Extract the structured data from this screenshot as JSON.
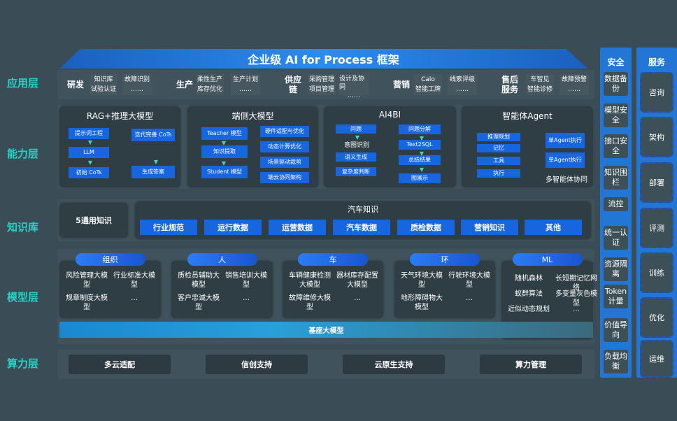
{
  "title": "企业级 AI for Process 框架",
  "layers": [
    "应用层",
    "能力层",
    "知识库",
    "模型层",
    "算力层"
  ],
  "app": [
    {
      "name": "研发",
      "items": [
        [
          "知识库",
          "试验认证"
        ],
        [
          "故障识别",
          "……"
        ]
      ]
    },
    {
      "name": "生产",
      "items": [
        [
          "柔性生产",
          "库存优化"
        ],
        [
          "生产计划",
          "……"
        ]
      ]
    },
    {
      "name": "供应链",
      "items": [
        [
          "采购管理",
          "项目管理"
        ],
        [
          "设计及协同",
          "……"
        ]
      ]
    },
    {
      "name": "营销",
      "items": [
        [
          "Calo",
          "智能工牌"
        ],
        [
          "线索评级",
          "……"
        ]
      ]
    },
    {
      "name": "售后服务",
      "items": [
        [
          "车智见",
          "智能诊修"
        ],
        [
          "故障预警",
          "……"
        ]
      ]
    }
  ],
  "capability": {
    "rag": {
      "title": "RAG+推理大模型",
      "left": [
        "提示词工程",
        "LLM",
        "初始 CoTs"
      ],
      "right": [
        "迭代完善 CoTs",
        "生成答案"
      ]
    },
    "edge": {
      "title": "端侧大模型",
      "left": [
        "Teacher 模型",
        "知识提取",
        "Student 模型"
      ],
      "right": [
        "硬件适配与优化",
        "动态计算优化",
        "场景驱动裁剪",
        "端云协同架构"
      ]
    },
    "ai4bi": {
      "title": "AI4BI",
      "left": [
        "问题",
        "意图识别",
        "语义生成",
        "复杂度判断"
      ],
      "right": [
        "问题分解",
        "Text2SQL",
        "总结结果",
        "图展示"
      ]
    },
    "agent": {
      "title": "智能体Agent",
      "left": [
        "推理规划",
        "记忆",
        "工具",
        "执行"
      ],
      "right": [
        "单Agent执行",
        "单Agent执行"
      ],
      "caption": "多智能体协同"
    }
  },
  "knowledge": {
    "general": "5通用知识",
    "auto_title": "汽车知识",
    "auto": [
      "行业规范",
      "运行数据",
      "运营数据",
      "汽车数据",
      "质检数据",
      "营销知识",
      "其他"
    ]
  },
  "models": [
    {
      "name": "组织",
      "items": [
        "风险管理大模型",
        "行业标准大模型",
        "规章制度大模型",
        "…"
      ]
    },
    {
      "name": "人",
      "items": [
        "质检员辅助大模型",
        "销售培训大模型",
        "客户忠诚大模型",
        "…"
      ]
    },
    {
      "name": "车",
      "items": [
        "车辆健康检测大模型",
        "器材库存配置大模型",
        "故障维修大模型",
        "…"
      ]
    },
    {
      "name": "环",
      "items": [
        "天气环境大模型",
        "行驶环境大模型",
        "地形障碍物大模型",
        "…"
      ]
    },
    {
      "name": "ML",
      "items": [
        "随机森林",
        "长短期记忆网络",
        "蚁群算法",
        "多变量灰色模型",
        "近似动态规划",
        "…"
      ]
    }
  ],
  "base_model": "基座大模型",
  "compute": [
    "多云适配",
    "信创支持",
    "云原生支持",
    "算力管理"
  ],
  "security": {
    "title": "安全",
    "items": [
      "数据备份",
      "模型安全",
      "接口安全",
      "知识围栏",
      "流控",
      "统一认证",
      "资源隔离",
      "Token计量",
      "价值导向",
      "负载均衡"
    ]
  },
  "service": {
    "title": "服务",
    "items": [
      "咨询",
      "架构",
      "部署",
      "评测",
      "训练",
      "优化",
      "运维"
    ]
  }
}
